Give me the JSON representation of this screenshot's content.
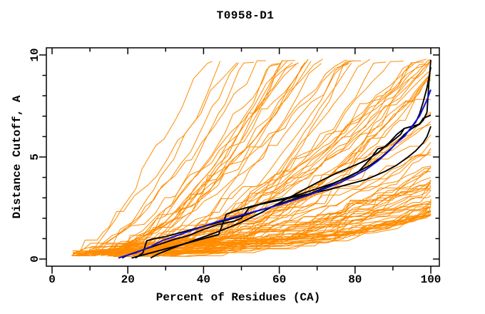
{
  "chart_data": {
    "type": "line",
    "title": "T0958-D1",
    "xlabel": "Percent of Residues (CA)",
    "ylabel": "Distance Cutoff, A",
    "xlim": [
      0,
      100
    ],
    "ylim": [
      0,
      10
    ],
    "x_ticks_major": [
      0,
      20,
      40,
      60,
      80,
      100
    ],
    "x_tick_minor_step": 10,
    "y_ticks_major": [
      0,
      5,
      10
    ],
    "y_tick_minor_step": 1,
    "grid": false,
    "legend": "none",
    "colors": {
      "background": "#FFFFFF",
      "axis": "#000000",
      "model_pool": "#FF8C00",
      "selected_models": "#000000",
      "highlight_model": "#1010D8"
    },
    "series": [
      {
        "name": "model-pool-orange",
        "color_key": "model_pool",
        "style": "many thin monotone cumulative curves",
        "generated": true,
        "generator": {
          "seed": 20958,
          "count": 96,
          "x_start_range": [
            5,
            32
          ],
          "y_start_range": [
            0.12,
            0.42
          ],
          "y_final_range": [
            2.2,
            38
          ],
          "top_cap": 9.55
        }
      },
      {
        "name": "selected-model-black-1",
        "color_key": "selected_models",
        "points": [
          [
            18.5,
            0.05
          ],
          [
            20,
            0.2
          ],
          [
            24,
            0.45
          ],
          [
            28,
            0.7
          ],
          [
            32,
            0.95
          ],
          [
            36,
            1.15
          ],
          [
            40,
            1.45
          ],
          [
            44,
            1.7
          ],
          [
            48,
            1.85
          ],
          [
            50,
            2.0
          ],
          [
            52,
            2.5
          ],
          [
            55,
            2.7
          ],
          [
            58,
            2.85
          ],
          [
            62,
            3.0
          ],
          [
            66,
            3.2
          ],
          [
            70,
            3.45
          ],
          [
            74,
            3.7
          ],
          [
            78,
            4.0
          ],
          [
            81,
            4.3
          ],
          [
            84,
            4.9
          ],
          [
            86,
            5.4
          ],
          [
            88,
            5.5
          ],
          [
            90,
            5.8
          ],
          [
            92,
            6.1
          ],
          [
            93,
            6.4
          ],
          [
            95,
            6.5
          ],
          [
            97,
            6.6
          ],
          [
            98,
            6.8
          ],
          [
            99,
            7.2
          ],
          [
            99.5,
            8.6
          ],
          [
            100,
            9.75
          ]
        ]
      },
      {
        "name": "selected-model-black-2",
        "color_key": "selected_models",
        "points": [
          [
            22,
            0.05
          ],
          [
            24,
            0.3
          ],
          [
            25,
            0.9
          ],
          [
            27,
            1.0
          ],
          [
            30,
            1.1
          ],
          [
            34,
            1.3
          ],
          [
            38,
            1.5
          ],
          [
            42,
            1.7
          ],
          [
            45,
            1.85
          ],
          [
            48,
            2.0
          ],
          [
            51,
            2.15
          ],
          [
            54,
            2.35
          ],
          [
            57,
            2.5
          ],
          [
            60,
            2.7
          ],
          [
            64,
            2.95
          ],
          [
            68,
            3.2
          ],
          [
            72,
            3.5
          ],
          [
            76,
            3.85
          ],
          [
            80,
            4.2
          ],
          [
            84,
            4.6
          ],
          [
            87,
            5.0
          ],
          [
            90,
            5.5
          ],
          [
            93,
            6.1
          ],
          [
            95,
            6.4
          ],
          [
            97,
            6.6
          ],
          [
            98,
            6.9
          ],
          [
            100,
            7.05
          ]
        ]
      },
      {
        "name": "selected-model-black-3",
        "color_key": "selected_models",
        "points": [
          [
            21,
            0.05
          ],
          [
            26,
            0.3
          ],
          [
            31,
            0.55
          ],
          [
            35,
            0.75
          ],
          [
            40,
            1.0
          ],
          [
            44,
            1.2
          ],
          [
            46,
            2.2
          ],
          [
            49,
            2.4
          ],
          [
            53,
            2.6
          ],
          [
            58,
            2.8
          ],
          [
            63,
            3.0
          ],
          [
            68,
            3.2
          ],
          [
            73,
            3.4
          ],
          [
            78,
            3.65
          ],
          [
            83,
            3.9
          ],
          [
            88,
            4.3
          ],
          [
            91,
            4.6
          ],
          [
            94,
            5.0
          ],
          [
            96,
            5.3
          ],
          [
            98,
            5.7
          ],
          [
            99,
            6.0
          ],
          [
            100,
            6.5
          ]
        ]
      },
      {
        "name": "selected-model-black-4",
        "color_key": "selected_models",
        "points": [
          [
            26,
            0.05
          ],
          [
            28,
            0.25
          ],
          [
            32,
            0.55
          ],
          [
            38,
            0.95
          ],
          [
            44,
            1.35
          ],
          [
            50,
            1.8
          ],
          [
            55,
            2.25
          ],
          [
            60,
            2.75
          ],
          [
            65,
            3.25
          ],
          [
            70,
            3.75
          ],
          [
            75,
            4.2
          ],
          [
            80,
            4.6
          ],
          [
            83,
            4.85
          ],
          [
            86,
            5.2
          ],
          [
            89,
            5.7
          ],
          [
            91,
            6.1
          ],
          [
            93,
            6.4
          ],
          [
            95,
            6.5
          ],
          [
            96,
            6.7
          ],
          [
            97,
            7.1
          ],
          [
            98,
            7.7
          ],
          [
            99,
            8.4
          ],
          [
            100,
            9.4
          ]
        ]
      },
      {
        "name": "highlight-model-blue",
        "color_key": "highlight_model",
        "points": [
          [
            17.5,
            0.05
          ],
          [
            20,
            0.2
          ],
          [
            22,
            0.3
          ],
          [
            24,
            0.45
          ],
          [
            26,
            0.6
          ],
          [
            29,
            0.9
          ],
          [
            33,
            1.15
          ],
          [
            36,
            1.35
          ],
          [
            40,
            1.6
          ],
          [
            44,
            1.85
          ],
          [
            48,
            2.05
          ],
          [
            52,
            2.25
          ],
          [
            56,
            2.45
          ],
          [
            60,
            2.65
          ],
          [
            64,
            2.9
          ],
          [
            68,
            3.15
          ],
          [
            72,
            3.45
          ],
          [
            76,
            3.75
          ],
          [
            80,
            4.1
          ],
          [
            83,
            4.4
          ],
          [
            86,
            4.8
          ],
          [
            89,
            5.3
          ],
          [
            91,
            5.7
          ],
          [
            93,
            6.0
          ],
          [
            95,
            6.5
          ],
          [
            97,
            7.0
          ],
          [
            98,
            7.4
          ],
          [
            99,
            7.8
          ],
          [
            100,
            8.3
          ]
        ]
      }
    ]
  }
}
